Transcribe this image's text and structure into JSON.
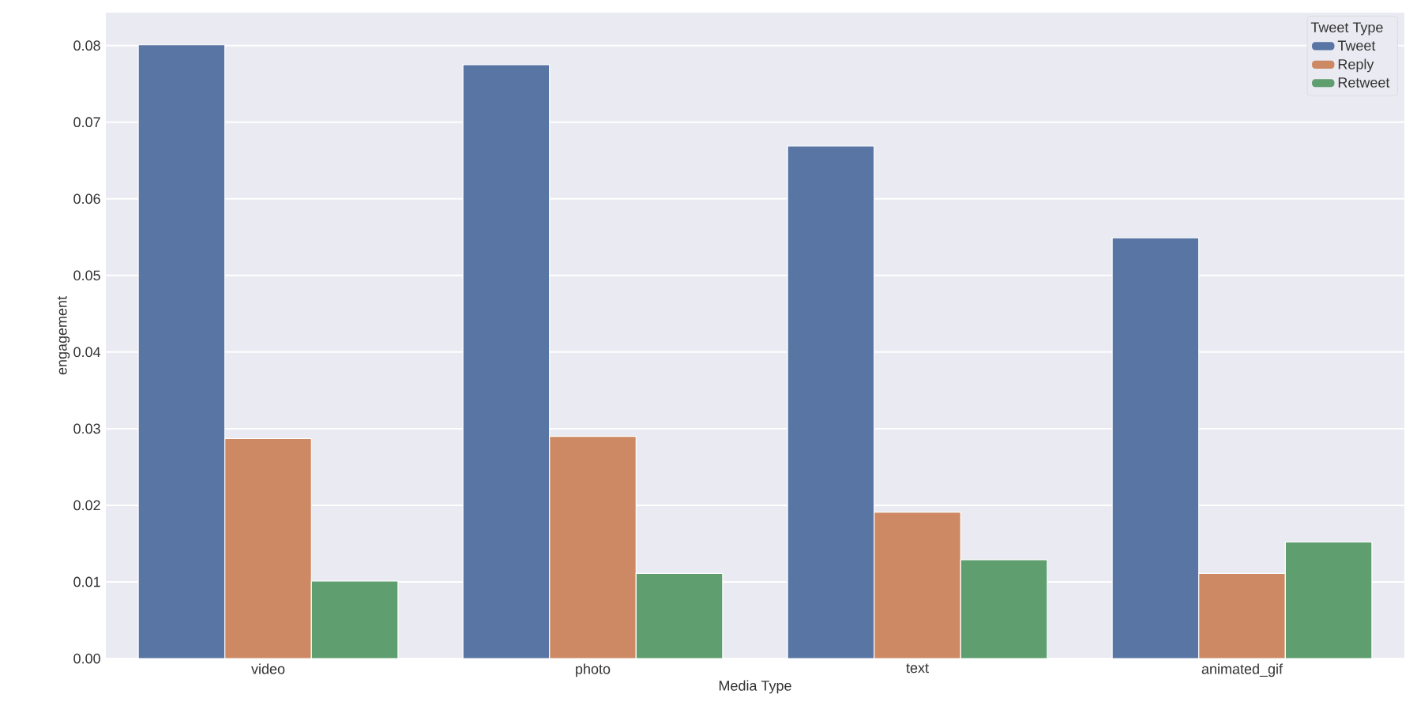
{
  "chart_data": {
    "type": "bar",
    "xlabel": "Media Type",
    "ylabel": "engagement",
    "legend_title": "Tweet Type",
    "categories": [
      "video",
      "photo",
      "text",
      "animated_gif"
    ],
    "series": [
      {
        "name": "Tweet",
        "color": "#5875a4",
        "values": [
          0.0801,
          0.0775,
          0.0669,
          0.0549
        ]
      },
      {
        "name": "Reply",
        "color": "#cc8963",
        "values": [
          0.0287,
          0.029,
          0.0191,
          0.0111
        ]
      },
      {
        "name": "Retweet",
        "color": "#5f9e6e",
        "values": [
          0.0101,
          0.0111,
          0.0129,
          0.0152
        ]
      }
    ],
    "ylim": [
      0,
      0.0843
    ],
    "yticks": [
      {
        "value": 0,
        "label": "0.00"
      },
      {
        "value": 0.01,
        "label": "0.01"
      },
      {
        "value": 0.02,
        "label": "0.02"
      },
      {
        "value": 0.03,
        "label": "0.03"
      },
      {
        "value": 0.04,
        "label": "0.04"
      },
      {
        "value": 0.05,
        "label": "0.05"
      },
      {
        "value": 0.06,
        "label": "0.06"
      },
      {
        "value": 0.07,
        "label": "0.07"
      },
      {
        "value": 0.08,
        "label": "0.08"
      }
    ],
    "grid": "y",
    "legend": "top right"
  }
}
